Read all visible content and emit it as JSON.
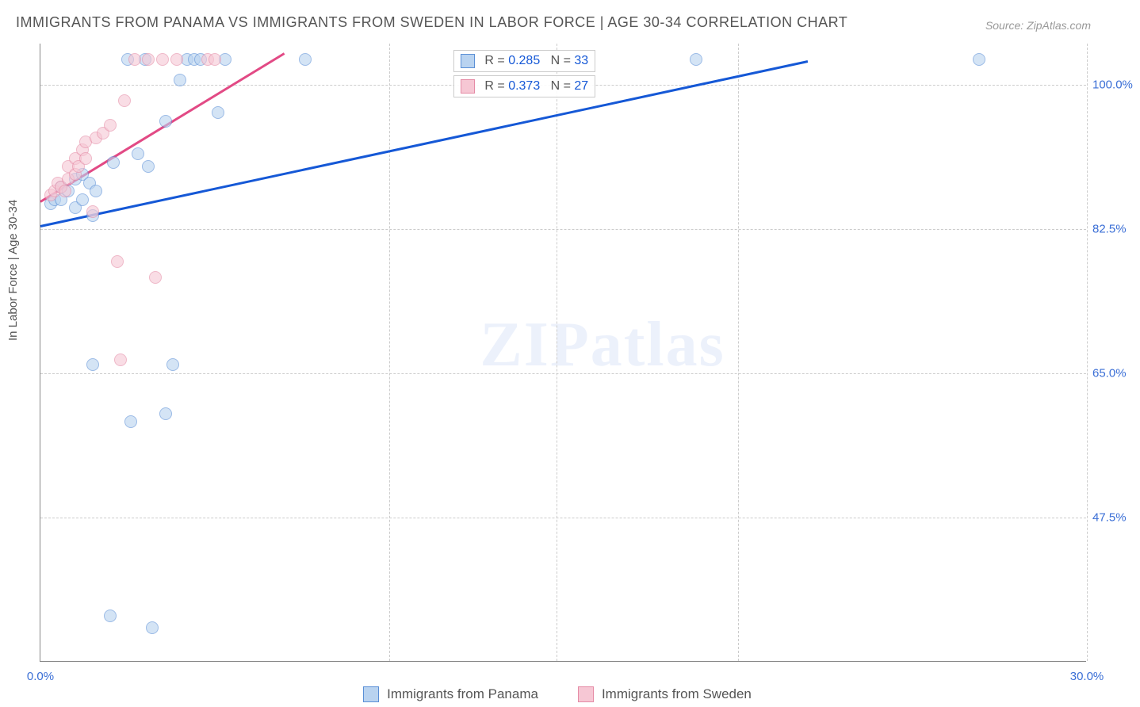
{
  "title": "IMMIGRANTS FROM PANAMA VS IMMIGRANTS FROM SWEDEN IN LABOR FORCE | AGE 30-34 CORRELATION CHART",
  "source": "Source: ZipAtlas.com",
  "y_axis_label": "In Labor Force | Age 30-34",
  "watermark": "ZIPatlas",
  "chart": {
    "type": "scatter",
    "xlim": [
      0,
      30
    ],
    "ylim": [
      30,
      105
    ],
    "x_ticks": [
      {
        "v": 0.0,
        "label": "0.0%"
      },
      {
        "v": 30.0,
        "label": "30.0%"
      }
    ],
    "x_grid_v": [
      10,
      14.8,
      20,
      30
    ],
    "y_ticks": [
      {
        "v": 47.5,
        "label": "47.5%"
      },
      {
        "v": 65.0,
        "label": "65.0%"
      },
      {
        "v": 82.5,
        "label": "82.5%"
      },
      {
        "v": 100.0,
        "label": "100.0%"
      }
    ],
    "background_color": "#ffffff",
    "grid_color": "#cccccc",
    "axis_color": "#888888",
    "marker_size": 16,
    "series": [
      {
        "name": "Immigrants from Panama",
        "fill_color": "#b9d3f0",
        "stroke_color": "#5a8fd6",
        "fill_opacity": 0.6,
        "trend_color": "#1558d6",
        "trend": {
          "x1": 0.0,
          "y1": 83.0,
          "x2": 22.0,
          "y2": 103.0
        },
        "stats": {
          "R": "0.285",
          "N": "33"
        },
        "points": [
          [
            0.3,
            85.5
          ],
          [
            0.4,
            86.0
          ],
          [
            0.6,
            86.0
          ],
          [
            0.6,
            87.5
          ],
          [
            0.8,
            87.0
          ],
          [
            1.0,
            85.0
          ],
          [
            1.0,
            88.5
          ],
          [
            1.2,
            89.0
          ],
          [
            1.2,
            86.0
          ],
          [
            1.4,
            88.0
          ],
          [
            1.5,
            84.0
          ],
          [
            1.6,
            87.0
          ],
          [
            1.5,
            66.0
          ],
          [
            2.0,
            35.5
          ],
          [
            2.1,
            90.5
          ],
          [
            2.5,
            103.0
          ],
          [
            2.8,
            91.5
          ],
          [
            2.6,
            59.0
          ],
          [
            3.0,
            103.0
          ],
          [
            3.1,
            90.0
          ],
          [
            3.2,
            34.0
          ],
          [
            3.6,
            95.5
          ],
          [
            3.6,
            60.0
          ],
          [
            3.8,
            66.0
          ],
          [
            4.0,
            100.5
          ],
          [
            4.2,
            103.0
          ],
          [
            4.4,
            103.0
          ],
          [
            4.6,
            103.0
          ],
          [
            5.1,
            96.5
          ],
          [
            5.3,
            103.0
          ],
          [
            7.6,
            103.0
          ],
          [
            18.8,
            103.0
          ],
          [
            26.9,
            103.0
          ]
        ]
      },
      {
        "name": "Immigrants from Sweden",
        "fill_color": "#f6c7d4",
        "stroke_color": "#e58aa5",
        "fill_opacity": 0.6,
        "trend_color": "#e24a85",
        "trend": {
          "x1": 0.0,
          "y1": 86.0,
          "x2": 7.0,
          "y2": 104.0
        },
        "stats": {
          "R": "0.373",
          "N": "27"
        },
        "points": [
          [
            0.3,
            86.5
          ],
          [
            0.4,
            87.0
          ],
          [
            0.5,
            88.0
          ],
          [
            0.6,
            87.5
          ],
          [
            0.7,
            87.0
          ],
          [
            0.8,
            88.5
          ],
          [
            0.8,
            90.0
          ],
          [
            1.0,
            89.0
          ],
          [
            1.0,
            91.0
          ],
          [
            1.1,
            90.0
          ],
          [
            1.2,
            92.0
          ],
          [
            1.3,
            91.0
          ],
          [
            1.3,
            93.0
          ],
          [
            1.5,
            84.5
          ],
          [
            1.6,
            93.5
          ],
          [
            1.8,
            94.0
          ],
          [
            2.0,
            95.0
          ],
          [
            2.2,
            78.5
          ],
          [
            2.3,
            66.5
          ],
          [
            2.4,
            98.0
          ],
          [
            2.7,
            103.0
          ],
          [
            3.1,
            103.0
          ],
          [
            3.3,
            76.5
          ],
          [
            3.5,
            103.0
          ],
          [
            3.9,
            103.0
          ],
          [
            4.8,
            103.0
          ],
          [
            5.0,
            103.0
          ]
        ]
      }
    ]
  },
  "legend": {
    "labels": [
      "Immigrants from Panama",
      "Immigrants from Sweden"
    ]
  }
}
